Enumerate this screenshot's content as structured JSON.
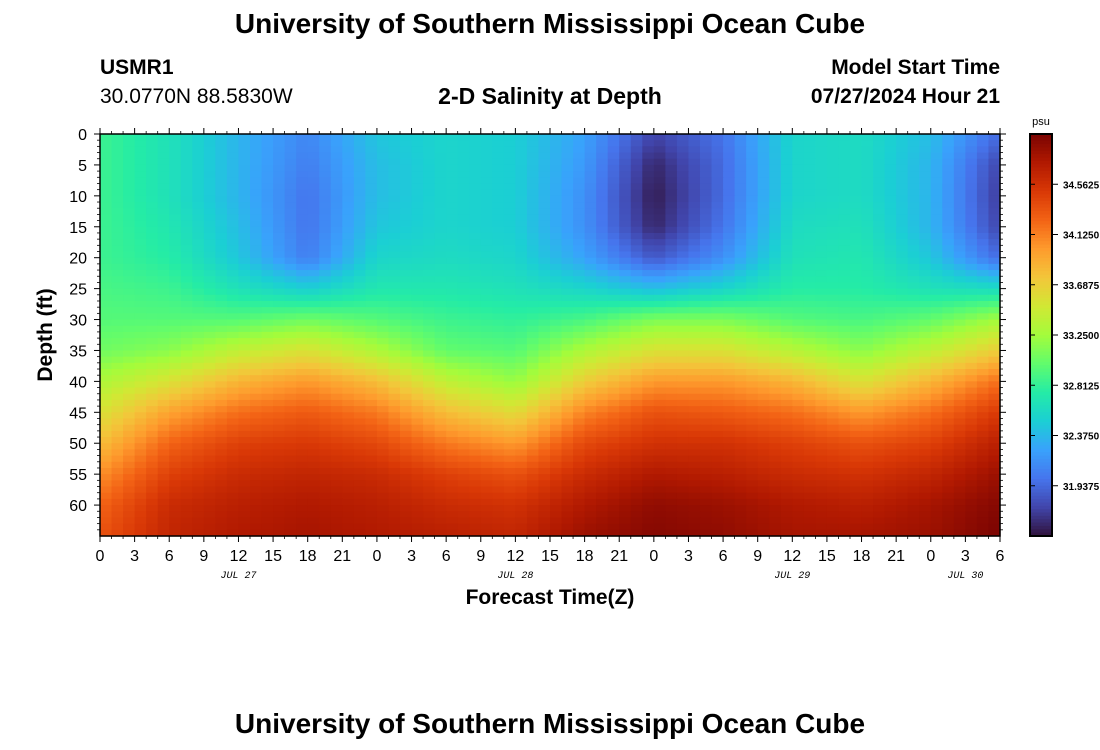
{
  "header": {
    "title": "University of Southern Mississippi Ocean Cube",
    "station_id": "USMR1",
    "coords": "30.0770N  88.5830W",
    "plot_title": "2-D Salinity at Depth",
    "model_start_label": "Model Start Time",
    "model_start_value": "07/27/2024 Hour 21"
  },
  "footer": {
    "title": "University of Southern Mississippi Ocean Cube"
  },
  "colors": {
    "colormap": [
      "#30123b",
      "#4145ab",
      "#4675ed",
      "#39a2fc",
      "#1bcfd4",
      "#24eca6",
      "#61fc6c",
      "#a4fc3b",
      "#d1e834",
      "#f3c63a",
      "#fe9b2d",
      "#f36315",
      "#d93806",
      "#b11901",
      "#7a0402"
    ]
  },
  "chart_data": {
    "type": "heatmap",
    "title": "2-D Salinity at Depth",
    "xlabel": "Forecast Time(Z)",
    "ylabel": "Depth (ft)",
    "colorbar_unit": "psu",
    "colorbar_ticks": [
      "34.5625",
      "34.1250",
      "33.6875",
      "33.2500",
      "32.8125",
      "32.3750",
      "31.9375"
    ],
    "colorbar_range": [
      31.5,
      35.0
    ],
    "x_tick_labels": [
      "0",
      "3",
      "6",
      "9",
      "12",
      "15",
      "18",
      "21",
      "0",
      "3",
      "6",
      "9",
      "12",
      "15",
      "18",
      "21",
      "0",
      "3",
      "6",
      "9",
      "12",
      "15",
      "18",
      "21",
      "0",
      "3",
      "6"
    ],
    "x_range_hours": [
      0,
      78
    ],
    "day_labels": [
      {
        "label": "JUL 27",
        "hour": 12
      },
      {
        "label": "JUL 28",
        "hour": 36
      },
      {
        "label": "JUL 29",
        "hour": 60
      },
      {
        "label": "JUL 30",
        "hour": 75
      }
    ],
    "y_tick_labels": [
      "0",
      "5",
      "10",
      "15",
      "20",
      "25",
      "30",
      "35",
      "40",
      "45",
      "50",
      "55",
      "60"
    ],
    "y_range_ft": [
      0,
      65
    ],
    "hours": [
      0,
      6,
      12,
      18,
      24,
      30,
      36,
      42,
      48,
      54,
      60,
      66,
      72,
      78
    ],
    "depths": [
      0,
      5,
      10,
      15,
      20,
      25,
      30,
      35,
      40,
      45,
      50,
      55,
      60,
      65
    ],
    "salinity": [
      [
        32.85,
        32.65,
        32.35,
        32.1,
        32.45,
        32.55,
        32.5,
        32.25,
        31.75,
        32.0,
        32.55,
        32.6,
        32.4,
        31.95
      ],
      [
        32.85,
        32.65,
        32.35,
        32.05,
        32.4,
        32.55,
        32.5,
        32.2,
        31.6,
        31.95,
        32.55,
        32.6,
        32.35,
        31.75
      ],
      [
        32.85,
        32.65,
        32.35,
        32.0,
        32.4,
        32.55,
        32.5,
        32.15,
        31.55,
        31.95,
        32.55,
        32.6,
        32.35,
        31.7
      ],
      [
        32.85,
        32.7,
        32.4,
        32.0,
        32.45,
        32.55,
        32.5,
        32.15,
        31.6,
        32.0,
        32.6,
        32.65,
        32.35,
        31.75
      ],
      [
        32.85,
        32.75,
        32.45,
        32.05,
        32.55,
        32.6,
        32.55,
        32.25,
        31.85,
        32.15,
        32.65,
        32.7,
        32.45,
        31.95
      ],
      [
        32.9,
        32.85,
        32.65,
        32.5,
        32.7,
        32.7,
        32.65,
        32.55,
        32.4,
        32.55,
        32.75,
        32.75,
        32.65,
        32.6
      ],
      [
        32.95,
        32.95,
        32.95,
        33.05,
        32.95,
        32.85,
        32.8,
        32.9,
        33.1,
        33.1,
        32.95,
        32.9,
        33.0,
        33.25
      ],
      [
        33.05,
        33.15,
        33.4,
        33.55,
        33.3,
        33.0,
        32.95,
        33.3,
        33.55,
        33.55,
        33.35,
        33.15,
        33.4,
        33.7
      ],
      [
        33.3,
        33.55,
        33.85,
        34.0,
        33.8,
        33.4,
        33.2,
        33.7,
        34.0,
        34.0,
        33.85,
        33.55,
        33.85,
        34.2
      ],
      [
        33.55,
        33.95,
        34.2,
        34.3,
        34.15,
        33.8,
        33.6,
        34.1,
        34.35,
        34.3,
        34.2,
        34.0,
        34.2,
        34.5
      ],
      [
        33.8,
        34.25,
        34.45,
        34.5,
        34.4,
        34.15,
        34.0,
        34.4,
        34.55,
        34.55,
        34.45,
        34.35,
        34.45,
        34.7
      ],
      [
        34.05,
        34.45,
        34.6,
        34.65,
        34.6,
        34.45,
        34.35,
        34.6,
        34.75,
        34.7,
        34.6,
        34.55,
        34.65,
        34.85
      ],
      [
        34.25,
        34.6,
        34.7,
        34.75,
        34.7,
        34.6,
        34.55,
        34.75,
        34.9,
        34.85,
        34.75,
        34.7,
        34.8,
        34.95
      ],
      [
        34.35,
        34.65,
        34.75,
        34.8,
        34.75,
        34.7,
        34.65,
        34.85,
        34.95,
        34.9,
        34.8,
        34.8,
        34.85,
        35.0
      ]
    ]
  }
}
